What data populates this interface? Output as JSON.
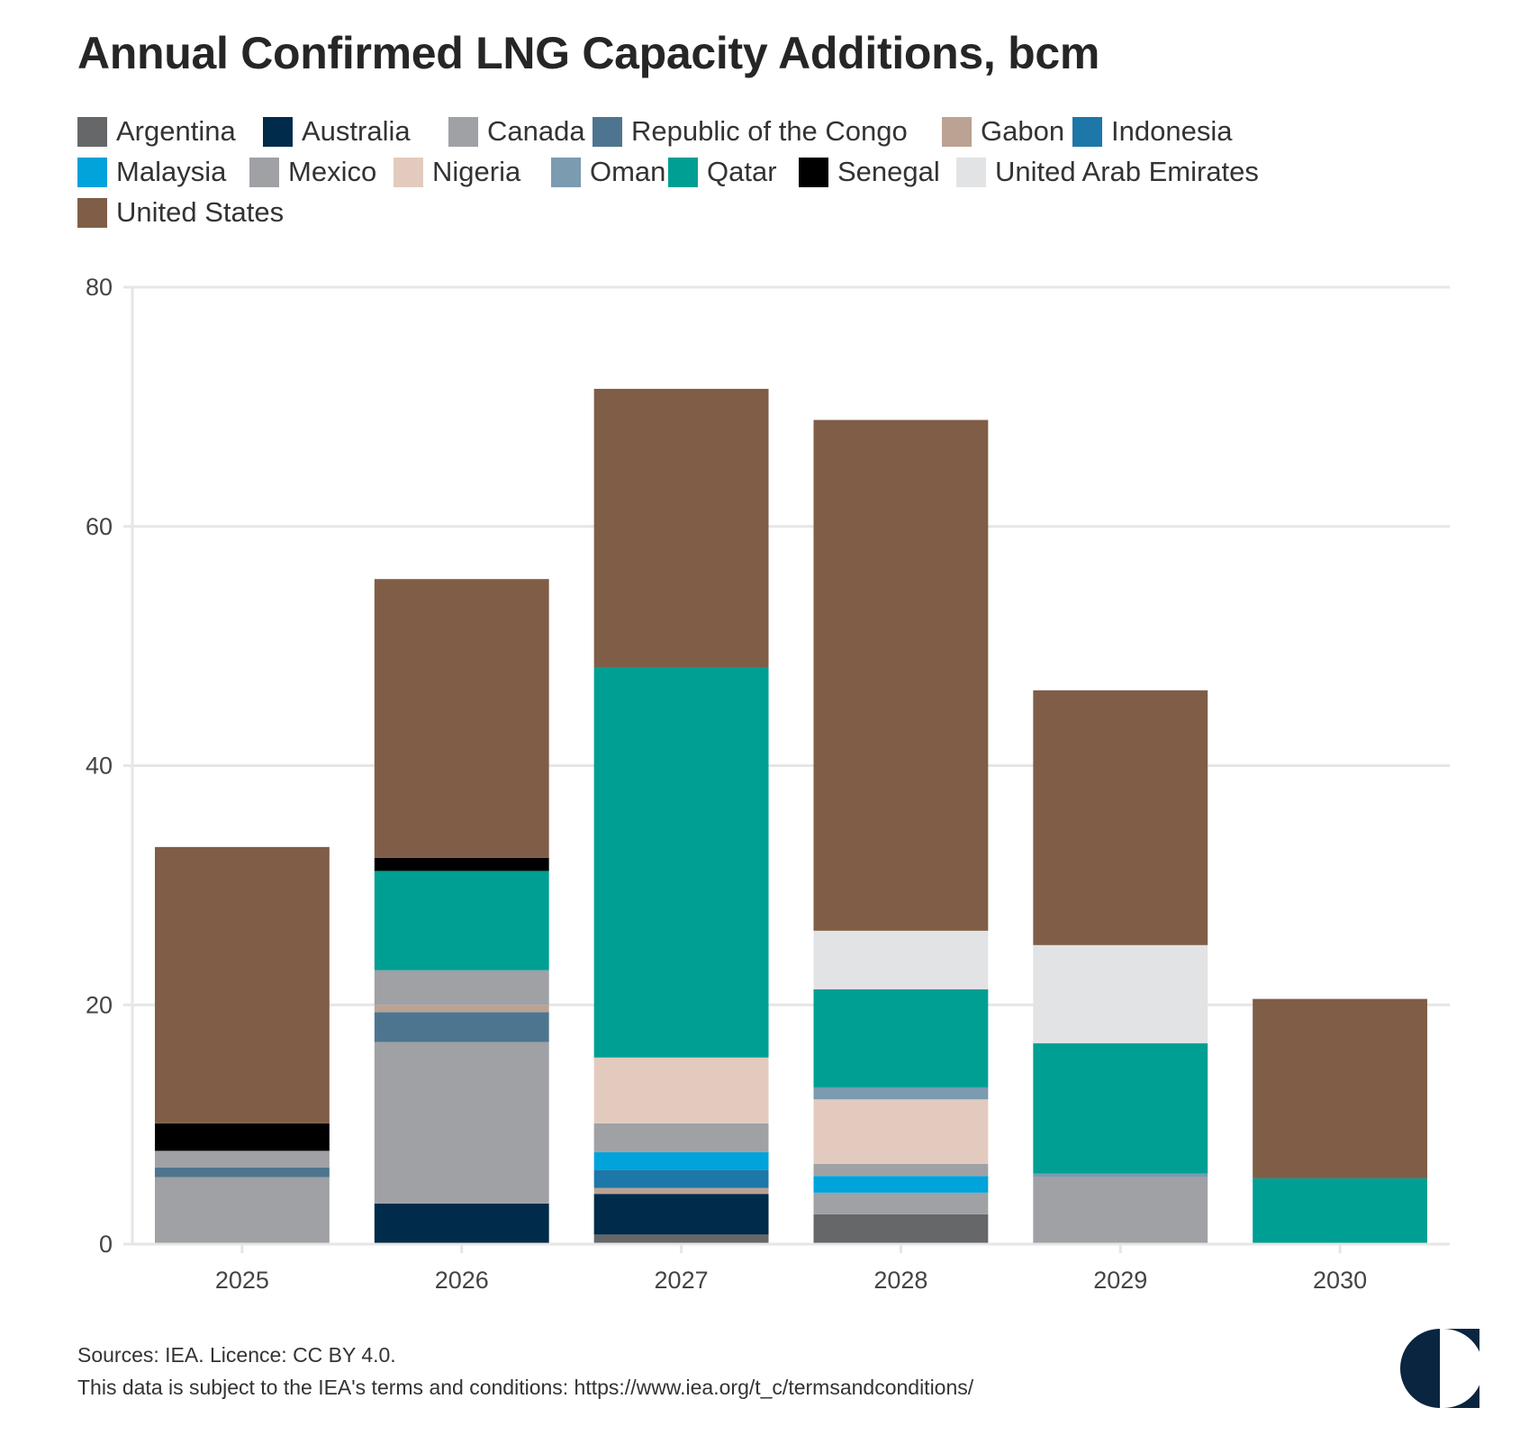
{
  "title": "Annual Confirmed LNG Capacity Additions, bcm",
  "footer": {
    "sources": "Sources: IEA. Licence: CC BY 4.0.",
    "terms": "This data is subject to the IEA's terms and conditions: https://www.iea.org/t_c/termsandconditions/"
  },
  "chart_data": {
    "type": "bar",
    "stacked": true,
    "title": "Annual Confirmed LNG Capacity Additions, bcm",
    "xlabel": "",
    "ylabel": "",
    "ylim": [
      0,
      80
    ],
    "yticks": [
      "0",
      "20",
      "40",
      "60",
      "80"
    ],
    "grid": true,
    "legend_position": "top",
    "categories": [
      "2025",
      "2026",
      "2027",
      "2028",
      "2029",
      "2030"
    ],
    "series": [
      {
        "name": "Argentina",
        "color": "#666769",
        "values": [
          0,
          0,
          0.8,
          2.5,
          0,
          0
        ]
      },
      {
        "name": "Australia",
        "color": "#002b4a",
        "values": [
          0,
          3.4,
          3.4,
          0,
          0,
          0
        ]
      },
      {
        "name": "Canada",
        "color": "#9fa1a5",
        "values": [
          5.6,
          13.5,
          0,
          1.8,
          5.6,
          0
        ]
      },
      {
        "name": "Republic of the Congo",
        "color": "#4e758f",
        "values": [
          0.8,
          2.5,
          0,
          0,
          0,
          0
        ]
      },
      {
        "name": "Gabon",
        "color": "#bba293",
        "values": [
          0,
          0.6,
          0.5,
          0,
          0,
          0
        ]
      },
      {
        "name": "Indonesia",
        "color": "#1d77a8",
        "values": [
          0,
          0,
          1.5,
          0,
          0,
          0
        ]
      },
      {
        "name": "Malaysia",
        "color": "#00a3da",
        "values": [
          0,
          0,
          1.5,
          1.4,
          0,
          0
        ]
      },
      {
        "name": "Mexico",
        "color": "#9fa1a5",
        "values": [
          1.4,
          2.9,
          2.4,
          1.0,
          0,
          0
        ]
      },
      {
        "name": "Nigeria",
        "color": "#e2cbbe",
        "values": [
          0,
          0,
          5.5,
          5.4,
          0,
          0
        ]
      },
      {
        "name": "Oman",
        "color": "#7a9bb0",
        "values": [
          0,
          0,
          0,
          1.0,
          0.3,
          0
        ]
      },
      {
        "name": "Qatar",
        "color": "#009f93",
        "values": [
          0,
          8.3,
          32.6,
          8.2,
          10.9,
          5.5
        ]
      },
      {
        "name": "Senegal",
        "color": "#000000",
        "values": [
          2.3,
          1.1,
          0,
          0,
          0,
          0
        ]
      },
      {
        "name": "United Arab Emirates",
        "color": "#e2e3e5",
        "values": [
          0,
          0,
          0,
          4.9,
          8.2,
          0
        ]
      },
      {
        "name": "United States",
        "color": "#805d47",
        "values": [
          23.1,
          23.3,
          23.3,
          42.7,
          21.3,
          15.0
        ]
      }
    ]
  }
}
